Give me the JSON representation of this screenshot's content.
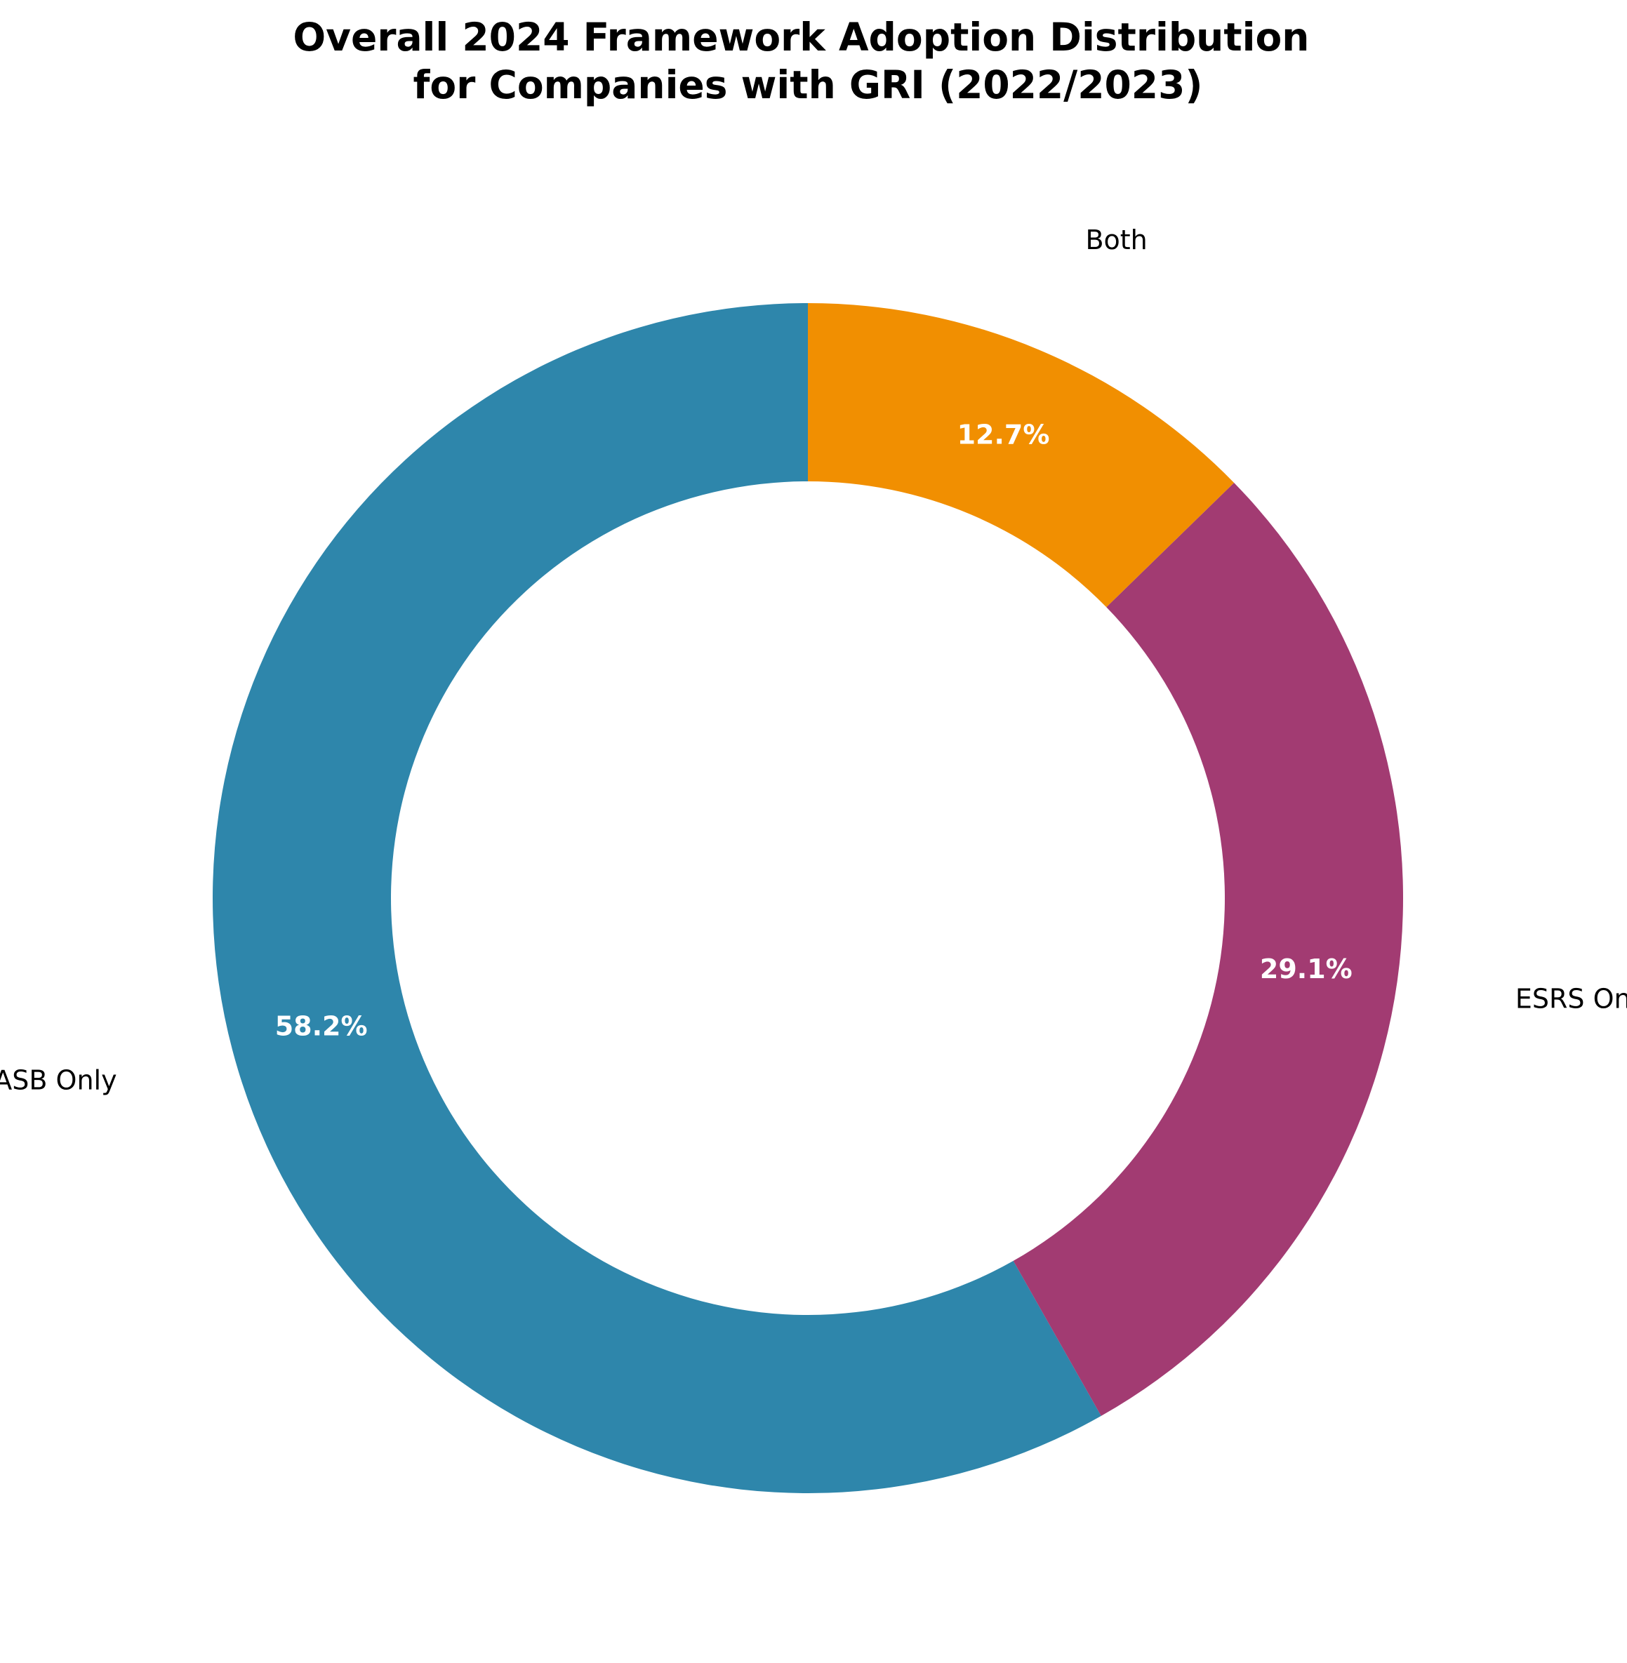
{
  "chart_data": {
    "type": "pie",
    "donut": true,
    "title_lines": [
      "Overall 2024 Framework Adoption Distribution",
      "for Companies with GRI (2022/2023)"
    ],
    "start_angle_deg": 90,
    "direction": "counterclockwise",
    "slices": [
      {
        "label": "SASB Only",
        "value": 58.2,
        "pct_label": "58.2%",
        "color": "#2e86ab"
      },
      {
        "label": "ESRS Only",
        "value": 29.1,
        "pct_label": "29.1%",
        "color": "#a23b72"
      },
      {
        "label": "Both",
        "value": 12.7,
        "pct_label": "12.7%",
        "color": "#f18f01"
      }
    ]
  }
}
